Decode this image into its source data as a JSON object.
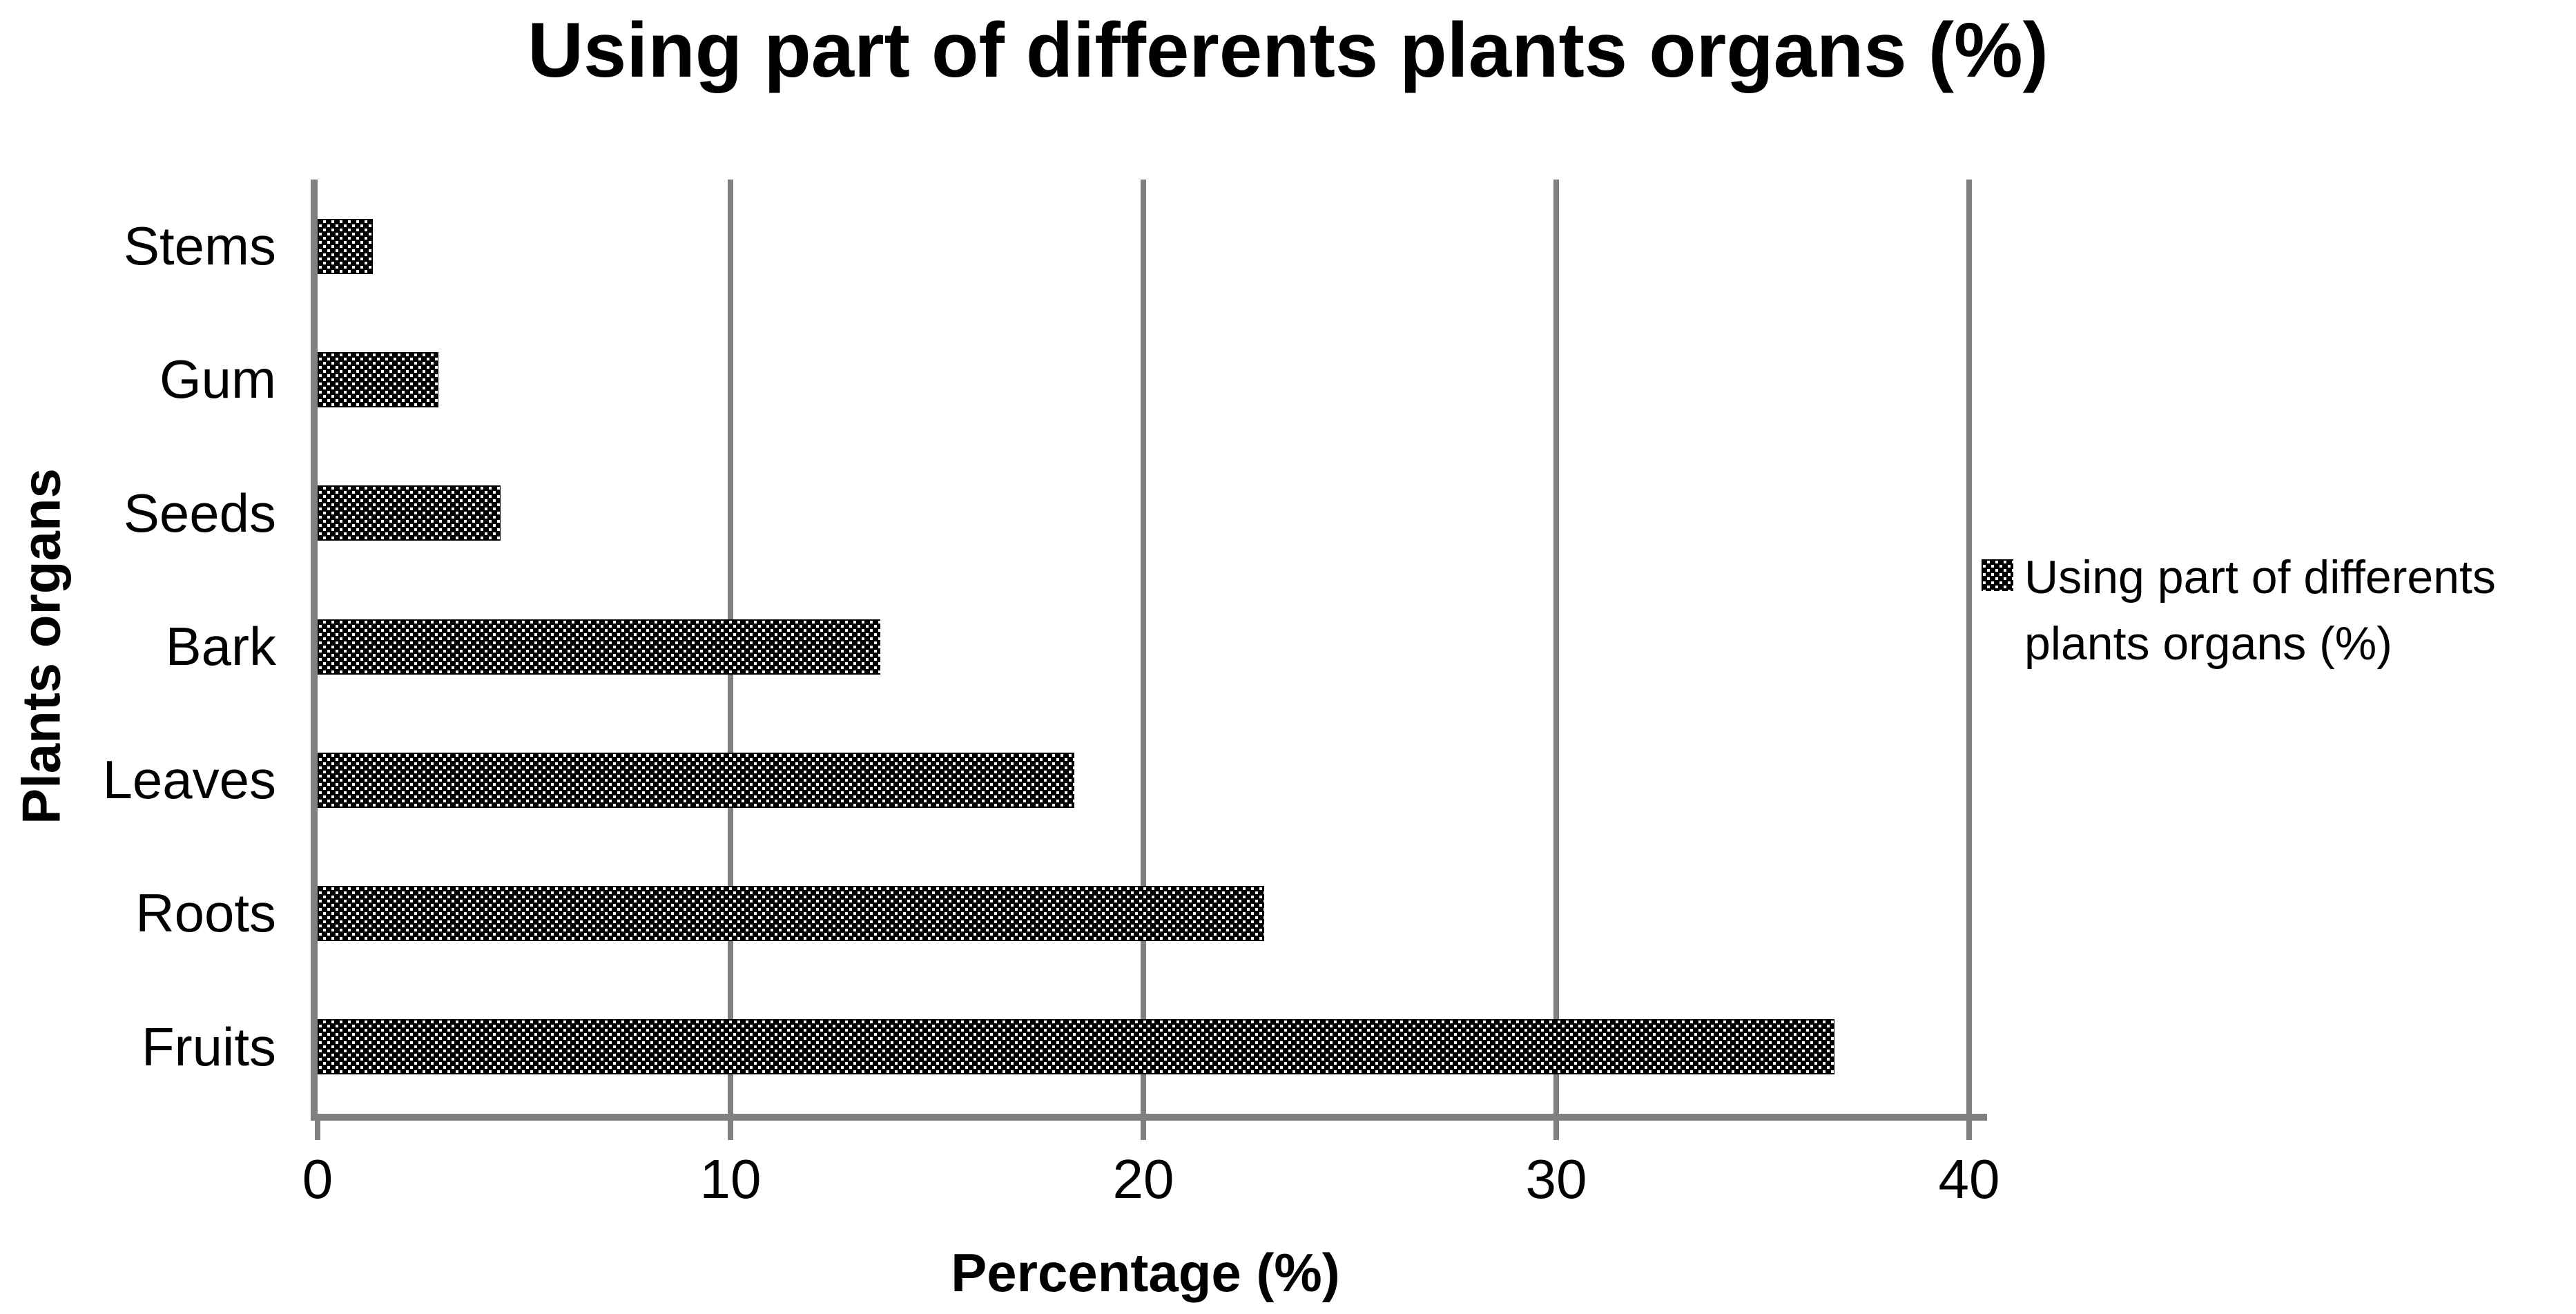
{
  "chart_data": {
    "type": "bar",
    "orientation": "horizontal",
    "title": "Using part of differents plants organs (%)",
    "categories": [
      "Stems",
      "Gum",
      "Seeds",
      "Bark",
      "Leaves",
      "Roots",
      "Fruits"
    ],
    "values": [
      1.5,
      3.1,
      4.6,
      13.8,
      18.5,
      23.1,
      36.9
    ],
    "series": [
      {
        "name": "Using part of differents plants organs (%)",
        "values": [
          1.5,
          3.1,
          4.6,
          13.8,
          18.5,
          23.1,
          36.9
        ]
      }
    ],
    "xlabel": "Percentage (%)",
    "ylabel": "Plants organs",
    "xlim": [
      0,
      40
    ],
    "xticks": [
      "0",
      "10",
      "20",
      "30",
      "40"
    ],
    "xtick_values": [
      0,
      10,
      20,
      30,
      40
    ],
    "grid": "vertical gray gridlines at x ticks",
    "legend": {
      "position": "right",
      "lines": [
        "Using part of differents",
        "plants organs (%)"
      ],
      "label": "Using part of differents plants organs (%)",
      "marker": "dotted-pattern-swatch-icon"
    },
    "bar_style": "black and white dotted/checker pattern fill"
  },
  "colors": {
    "bar_pattern_foreground": "#000000",
    "bar_pattern_background": "#ffffff",
    "axis_line": "#808080",
    "gridline": "#808080",
    "text": "#000000",
    "background": "#ffffff"
  }
}
